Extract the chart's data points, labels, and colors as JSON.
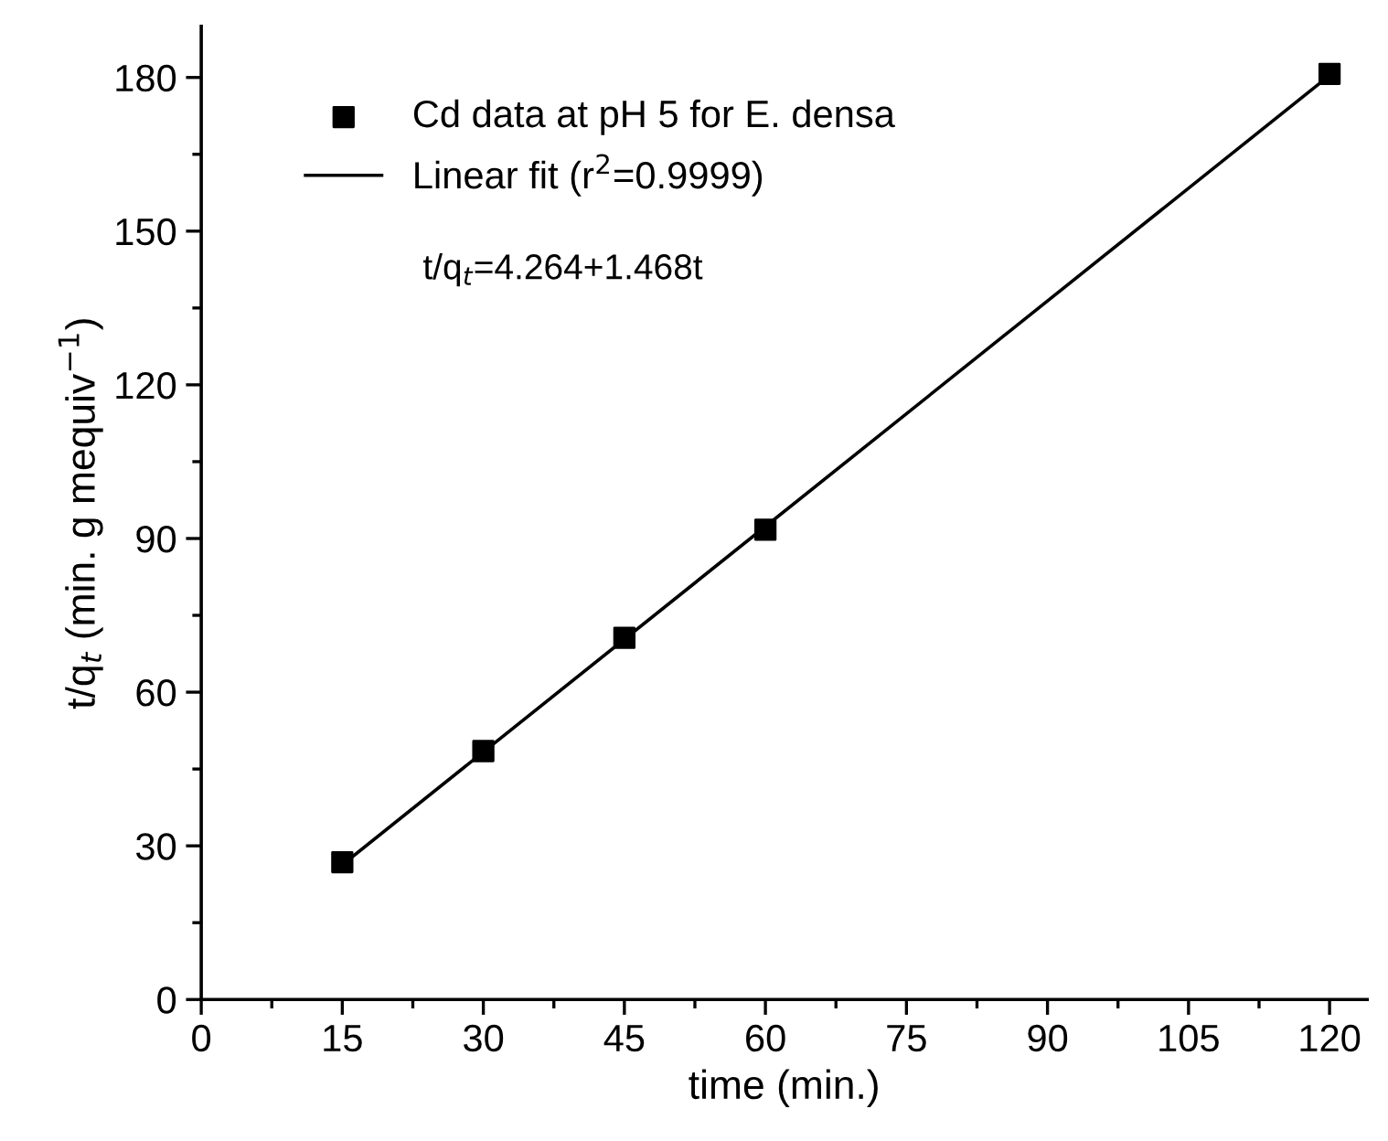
{
  "chart_data": {
    "type": "scatter",
    "xlabel": "time (min.)",
    "ylabel": "t/q$_{t}$ (min. g mequiv$^{−1}$)",
    "annotations": [
      "t/q$_{t}$=4.264+1.468t"
    ],
    "series": [
      {
        "name": "Cd data at pH 5 for E. densa",
        "marker": "square",
        "color": "#000000",
        "x": [
          15,
          30,
          45,
          60,
          120
        ],
        "values": [
          26.8,
          48.5,
          70.6,
          91.7,
          180.7
        ]
      },
      {
        "name": "Linear fit (r$^{2}$=0.9999)",
        "type": "line",
        "marker": "none",
        "line_style": "solid",
        "color": "#000000",
        "x": [
          15,
          120
        ],
        "values": [
          26.3,
          180.4
        ]
      }
    ],
    "xlim": [
      0,
      124
    ],
    "xticks": [
      0,
      15,
      30,
      45,
      60,
      75,
      90,
      105,
      120
    ],
    "ylim": [
      0,
      190
    ],
    "yticks": [
      0,
      30,
      60,
      90,
      120,
      150,
      180
    ],
    "grid": false,
    "legend": "top left"
  }
}
